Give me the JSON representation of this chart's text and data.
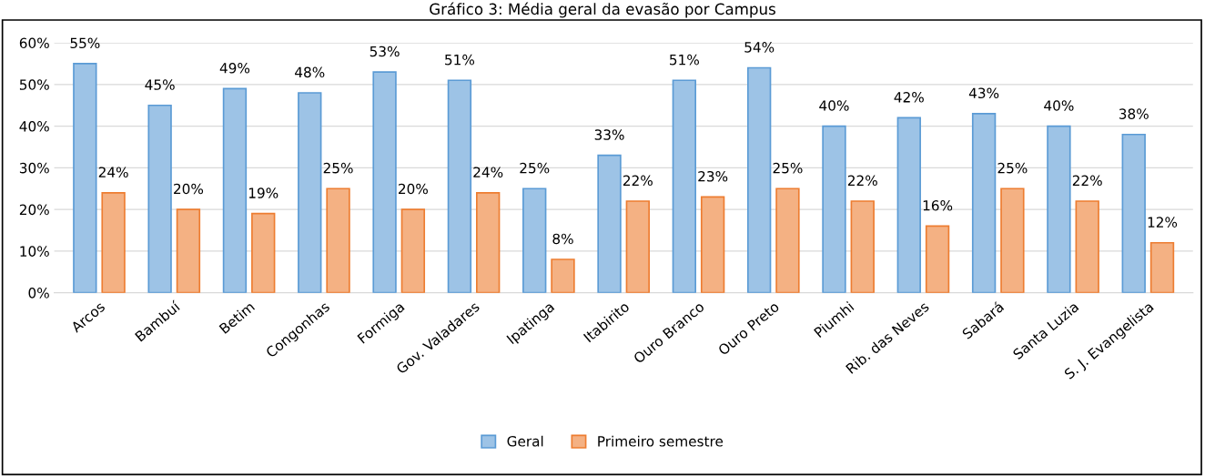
{
  "chart_data": {
    "type": "bar",
    "title": "Gráfico 3: Média geral da evasão por Campus",
    "categories": [
      "Arcos",
      "Bambuí",
      "Betim",
      "Congonhas",
      "Formiga",
      "Gov. Valadares",
      "Ipatinga",
      "Itabirito",
      "Ouro Branco",
      "Ouro Preto",
      "Piumhi",
      "Rib. das Neves",
      "Sabará",
      "Santa Luzia",
      "S. J. Evangelista"
    ],
    "series": [
      {
        "name": "Geral",
        "color": "#9dc3e6",
        "values": [
          55,
          45,
          49,
          48,
          53,
          51,
          25,
          33,
          51,
          54,
          40,
          42,
          43,
          40,
          38
        ],
        "value_labels": [
          "55%",
          "45%",
          "49%",
          "48%",
          "53%",
          "51%",
          "25%",
          "33%",
          "51%",
          "54%",
          "40%",
          "42%",
          "43%",
          "40%",
          "38%"
        ]
      },
      {
        "name": "Primeiro semestre",
        "color": "#f4b183",
        "values": [
          24,
          20,
          19,
          25,
          20,
          24,
          8,
          22,
          23,
          25,
          22,
          16,
          25,
          22,
          12
        ],
        "value_labels": [
          "24%",
          "20%",
          "19%",
          "25%",
          "20%",
          "24%",
          "8%",
          "22%",
          "23%",
          "25%",
          "22%",
          "16%",
          "25%",
          "22%",
          "12%"
        ]
      }
    ],
    "ylim": [
      0,
      60
    ],
    "yticks": [
      {
        "value": 0,
        "label": "0%"
      },
      {
        "value": 10,
        "label": "10%"
      },
      {
        "value": 20,
        "label": "20%"
      },
      {
        "value": 30,
        "label": "30%"
      },
      {
        "value": 40,
        "label": "40%"
      },
      {
        "value": 50,
        "label": "50%"
      },
      {
        "value": 60,
        "label": "60%"
      }
    ],
    "grid": "y",
    "legend": "bottom"
  }
}
